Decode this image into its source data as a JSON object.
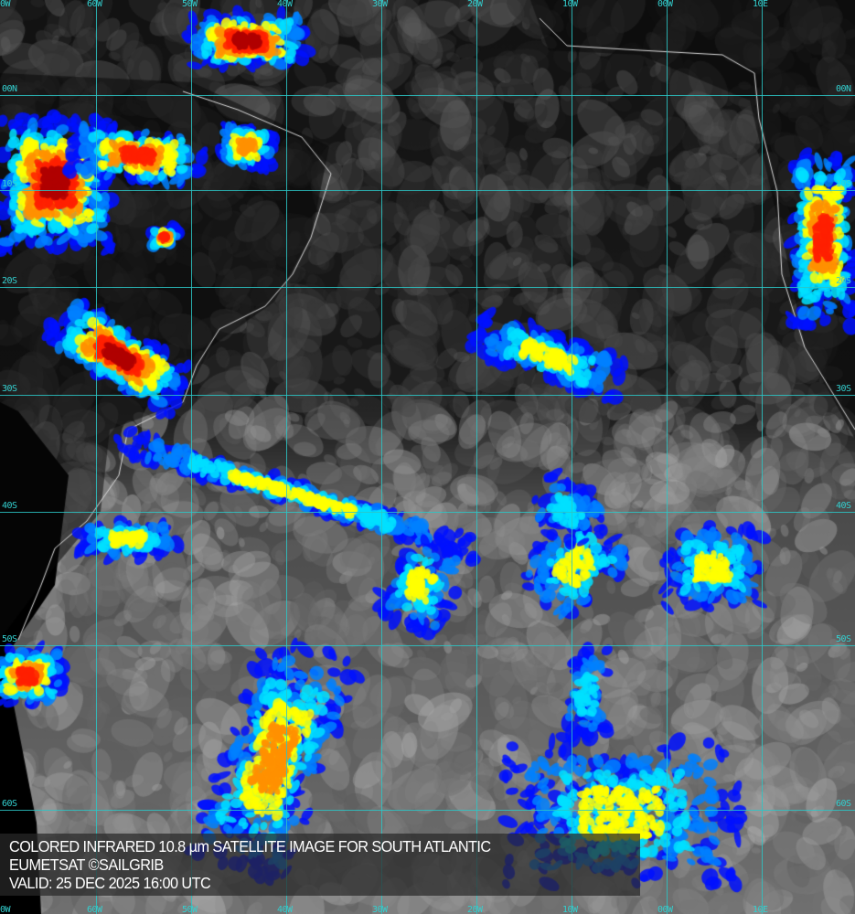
{
  "map": {
    "caption": {
      "line1": "COLORED INFRARED 10.8 µm SATELLITE IMAGE FOR SOUTH ATLANTIC",
      "line2": "EUMETSAT ©SAILGRIB",
      "line3": "VALID:  25 DEC 2025 16:00 UTC"
    },
    "longitude_labels": [
      "0W",
      "60W",
      "50W",
      "40W",
      "30W",
      "20W",
      "10W",
      "00W",
      "10E"
    ],
    "latitude_labels": [
      "00N",
      "10S",
      "20S",
      "30S",
      "40S",
      "50S",
      "60S"
    ],
    "colors": {
      "grid": "#2cc6c6",
      "coast": "#ffffff",
      "cold_tops_scale": [
        "#0010ff",
        "#00a0ff",
        "#00ffff",
        "#ffff00",
        "#ff8000",
        "#ff0000",
        "#a00000"
      ]
    }
  }
}
